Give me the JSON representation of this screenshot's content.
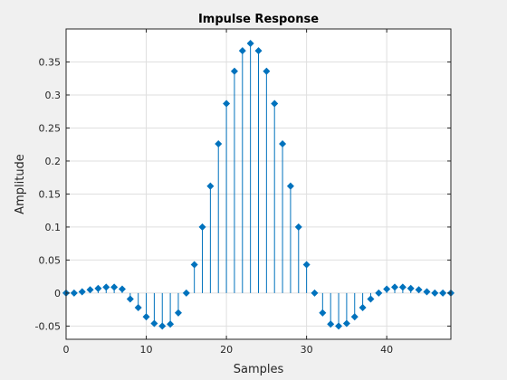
{
  "chart_data": {
    "type": "stem",
    "title": "Impulse Response",
    "xlabel": "Samples",
    "ylabel": "Amplitude",
    "xlim": [
      0,
      48
    ],
    "ylim": [
      -0.07,
      0.4
    ],
    "grid": true,
    "x_ticks": [
      0,
      10,
      20,
      30,
      40
    ],
    "y_ticks": [
      -0.05,
      0,
      0.05,
      0.1,
      0.15,
      0.2,
      0.25,
      0.3,
      0.35
    ],
    "x_tick_labels": [
      "0",
      "10",
      "20",
      "30",
      "40"
    ],
    "y_tick_labels": [
      "-0.05",
      "0",
      "0.05",
      "0.1",
      "0.15",
      "0.2",
      "0.25",
      "0.3",
      "0.35"
    ],
    "colors": {
      "series": "#0072bd",
      "grid": "#dfdfdf",
      "axes": "#262626",
      "background": "#f0f0f0",
      "plot_area": "#ffffff"
    },
    "series": [
      {
        "x": [
          0,
          1,
          2,
          3,
          4,
          5,
          6,
          7,
          8,
          9,
          10,
          11,
          12,
          13,
          14,
          15,
          16,
          17,
          18,
          19,
          20,
          21,
          22,
          23,
          24,
          25,
          26,
          27,
          28,
          29,
          30,
          31,
          32,
          33,
          34,
          35,
          36,
          37,
          38,
          39,
          40,
          41,
          42,
          43,
          44,
          45,
          46,
          47,
          48
        ],
        "values": [
          0.0,
          0.0,
          0.002,
          0.005,
          0.007,
          0.009,
          0.009,
          0.006,
          -0.009,
          -0.022,
          -0.036,
          -0.046,
          -0.05,
          -0.047,
          -0.03,
          0.0,
          0.043,
          0.1,
          0.162,
          0.226,
          0.287,
          0.336,
          0.367,
          0.378,
          0.367,
          0.336,
          0.287,
          0.226,
          0.162,
          0.1,
          0.043,
          0.0,
          -0.03,
          -0.047,
          -0.05,
          -0.046,
          -0.036,
          -0.022,
          -0.009,
          0.0,
          0.006,
          0.009,
          0.009,
          0.007,
          0.005,
          0.002,
          0.0,
          0.0,
          0.0
        ]
      }
    ]
  }
}
